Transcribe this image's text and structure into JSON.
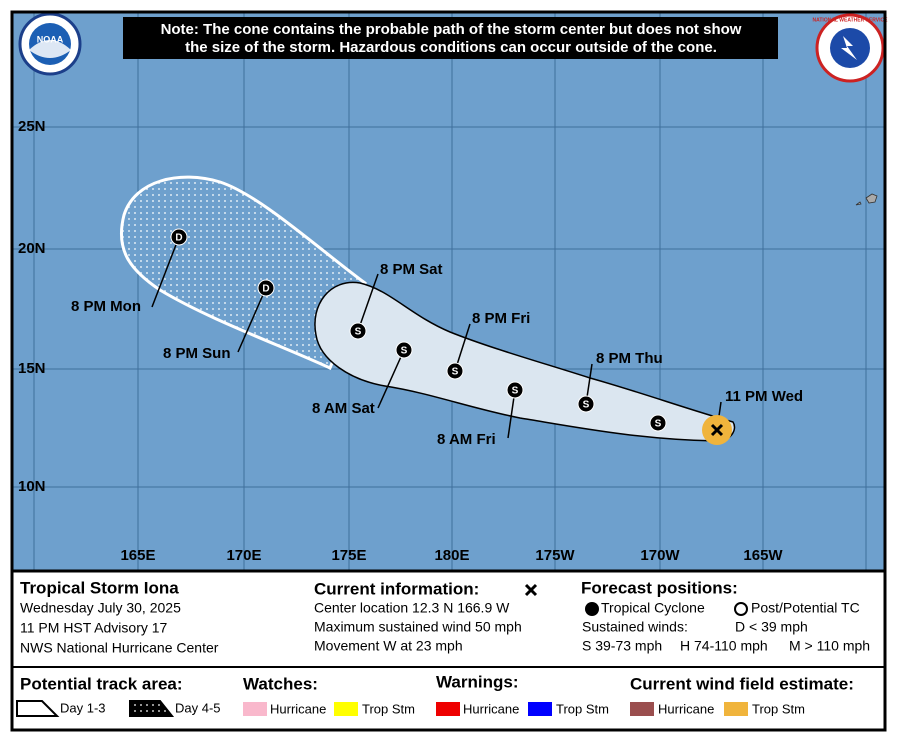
{
  "logos": {
    "noaa": "NOAA",
    "nws": "NATIONAL WEATHER SERVICE"
  },
  "note": [
    "Note: The cone contains the probable path of the storm center but does not show",
    "the size of the storm. Hazardous conditions can occur outside of the cone."
  ],
  "map": {
    "lat_labels": [
      "25N",
      "20N",
      "15N",
      "10N"
    ],
    "lon_labels": [
      "165E",
      "170E",
      "175E",
      "180E",
      "175W",
      "170W",
      "165W"
    ],
    "positions": [
      {
        "time": "11 PM Wed"
      },
      {
        "marker": "S"
      },
      {
        "marker": "S",
        "time": "8 PM Thu"
      },
      {
        "marker": "S",
        "time": "8 AM Fri"
      },
      {
        "marker": "S",
        "time": "8 PM Fri"
      },
      {
        "marker": "S",
        "time": "8 AM Sat"
      },
      {
        "marker": "S",
        "time": "8 PM Sat"
      },
      {
        "marker": "D",
        "time": "8 PM Sun"
      },
      {
        "marker": "D",
        "time": "8 PM Mon"
      }
    ]
  },
  "storm": {
    "name": "Tropical Storm Iona",
    "date": "Wednesday July 30, 2025",
    "advisory": "11 PM HST Advisory 17",
    "center": "NWS National Hurricane Center"
  },
  "current": {
    "heading": "Current information:",
    "lines": [
      "Center location 12.3 N 166.9 W",
      "Maximum sustained wind 50 mph",
      "Movement W at 23 mph"
    ]
  },
  "forecast": {
    "heading": "Forecast positions:",
    "tropical_cyclone": "Tropical Cyclone",
    "post_tc": "Post/Potential TC",
    "sustained": "Sustained winds:",
    "d": "D < 39 mph",
    "s": "S 39-73 mph",
    "h": "H 74-110 mph",
    "m": "M > 110 mph"
  },
  "legend": {
    "track": {
      "heading": "Potential track area:",
      "day13": "Day 1-3",
      "day45": "Day 4-5"
    },
    "watches": {
      "heading": "Watches:",
      "hurricane": "Hurricane",
      "trop_stm": "Trop Stm"
    },
    "warnings": {
      "heading": "Warnings:",
      "hurricane": "Hurricane",
      "trop_stm": "Trop Stm"
    },
    "wind_field": {
      "heading": "Current wind field estimate:",
      "hurricane": "Hurricane",
      "trop_stm": "Trop Stm"
    }
  }
}
